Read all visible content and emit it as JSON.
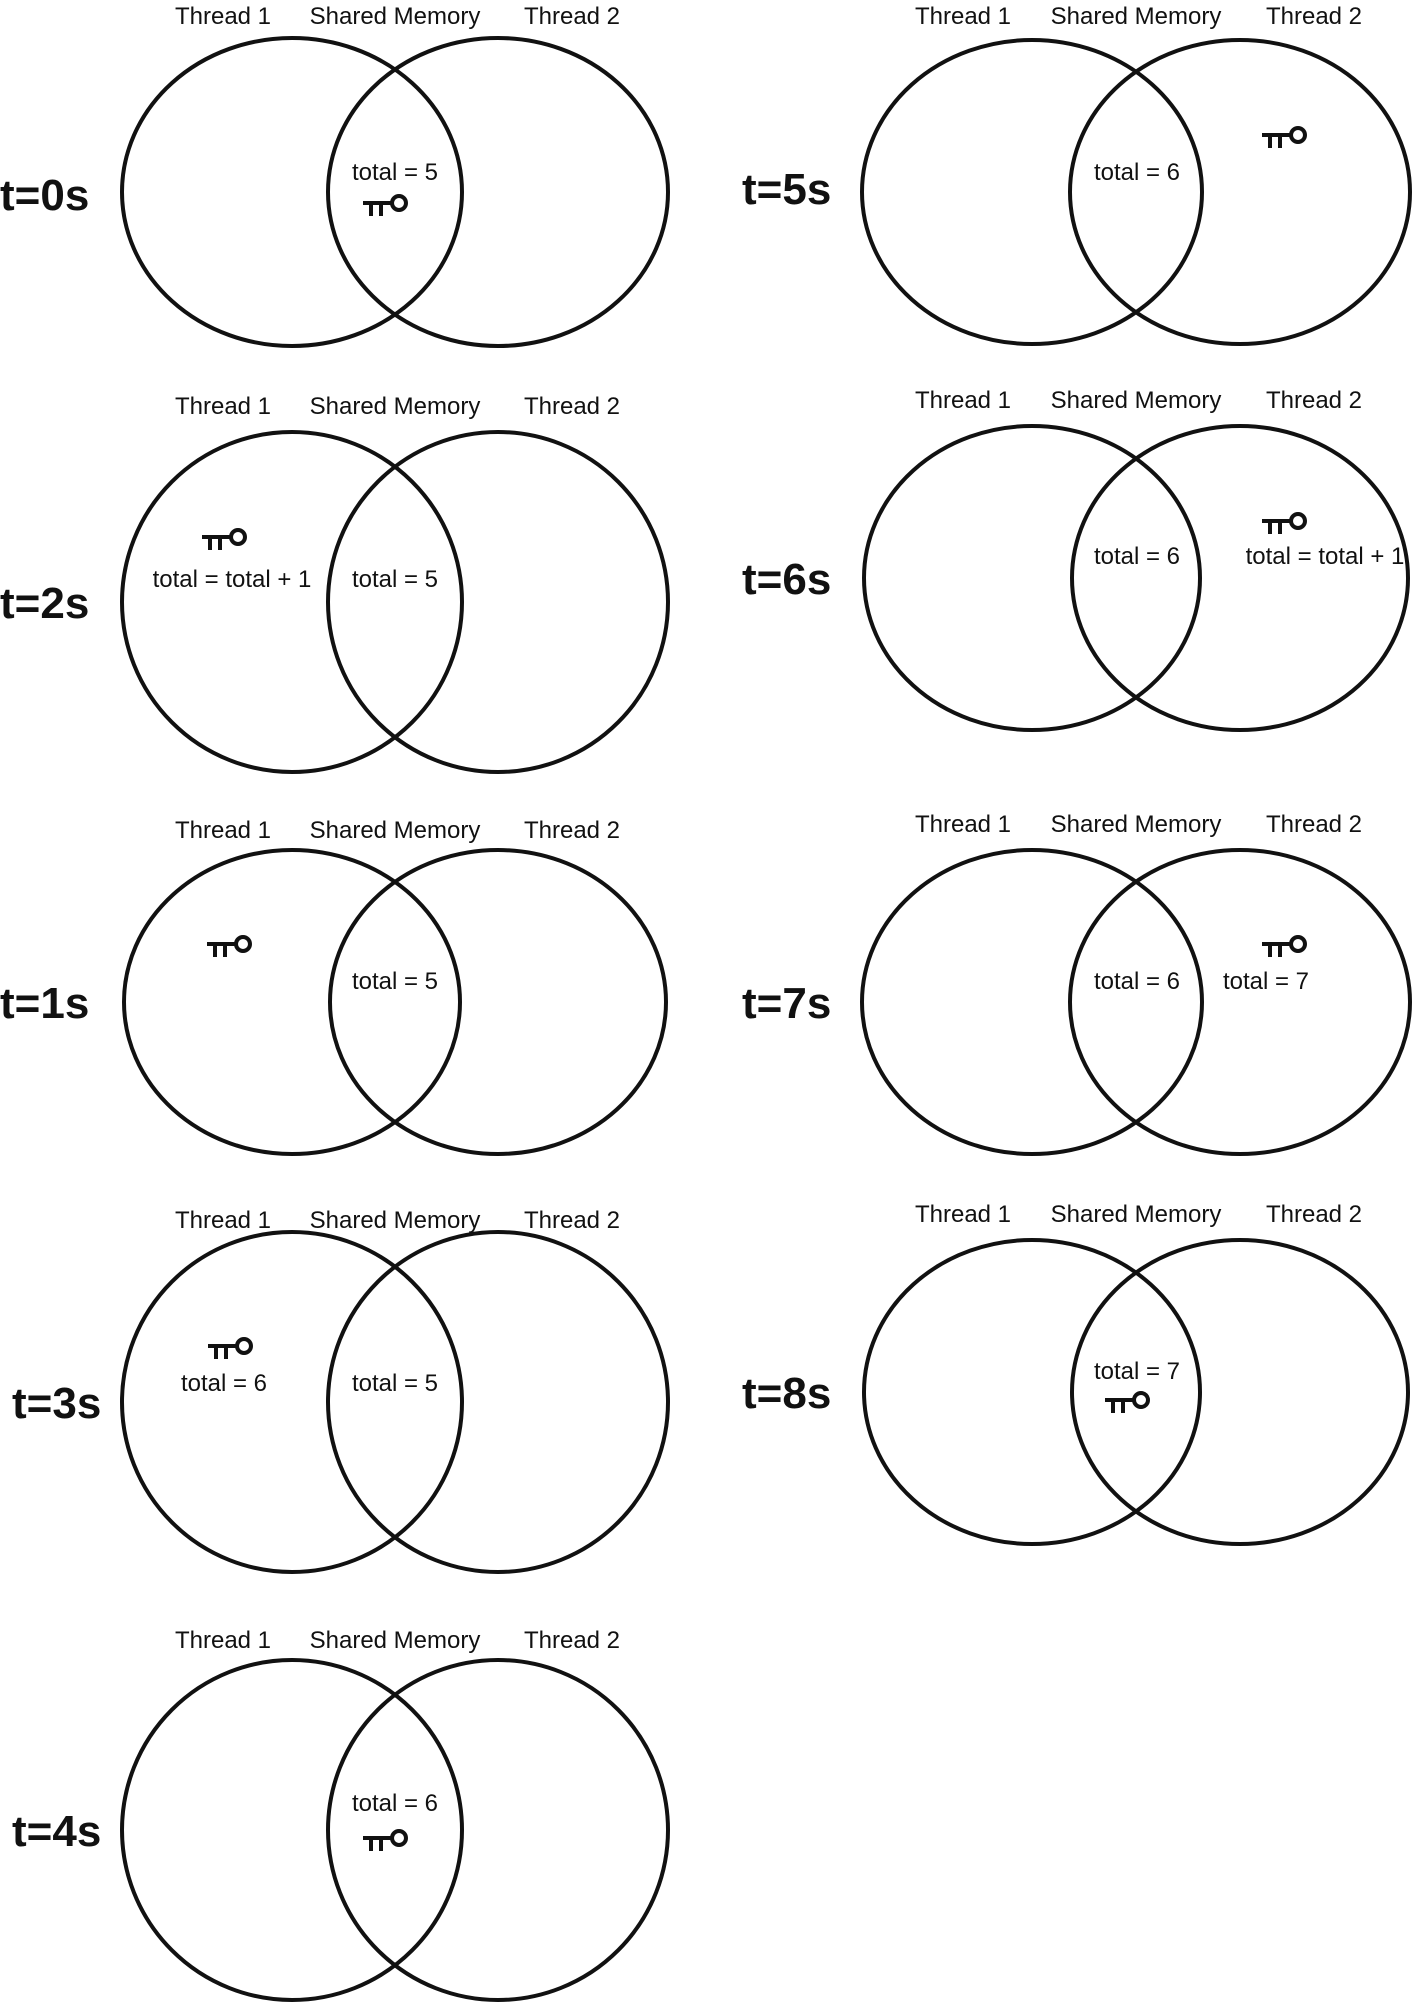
{
  "headers": {
    "thread1": "Thread 1",
    "shared": "Shared Memory",
    "thread2": "Thread 2"
  },
  "panels": [
    {
      "id": "t0",
      "time_label": "t=0s",
      "texts": [
        {
          "region": "shared",
          "text": "total = 5"
        }
      ],
      "key_region": "shared"
    },
    {
      "id": "t2",
      "time_label": "t=2s",
      "texts": [
        {
          "region": "thread1",
          "text": "total = total + 1"
        },
        {
          "region": "shared",
          "text": "total = 5"
        }
      ],
      "key_region": "thread1"
    },
    {
      "id": "t1",
      "time_label": "t=1s",
      "texts": [
        {
          "region": "shared",
          "text": "total = 5"
        }
      ],
      "key_region": "thread1"
    },
    {
      "id": "t3",
      "time_label": "t=3s",
      "texts": [
        {
          "region": "thread1",
          "text": "total = 6"
        },
        {
          "region": "shared",
          "text": "total = 5"
        }
      ],
      "key_region": "thread1"
    },
    {
      "id": "t4",
      "time_label": "t=4s",
      "texts": [
        {
          "region": "shared",
          "text": "total = 6"
        }
      ],
      "key_region": "shared"
    },
    {
      "id": "t5",
      "time_label": "t=5s",
      "texts": [
        {
          "region": "shared",
          "text": "total = 6"
        }
      ],
      "key_region": "thread2"
    },
    {
      "id": "t6",
      "time_label": "t=6s",
      "texts": [
        {
          "region": "shared",
          "text": "total = 6"
        },
        {
          "region": "thread2",
          "text": "total = total + 1"
        }
      ],
      "key_region": "thread2"
    },
    {
      "id": "t7",
      "time_label": "t=7s",
      "texts": [
        {
          "region": "shared",
          "text": "total = 6"
        },
        {
          "region": "thread2",
          "text": "total = 7"
        }
      ],
      "key_region": "thread2"
    },
    {
      "id": "t8",
      "time_label": "t=8s",
      "texts": [
        {
          "region": "shared",
          "text": "total = 7"
        }
      ],
      "key_region": "shared"
    }
  ],
  "colors": {
    "ink": "#111111",
    "background": "#ffffff"
  },
  "icons": {
    "key": "key-icon"
  }
}
